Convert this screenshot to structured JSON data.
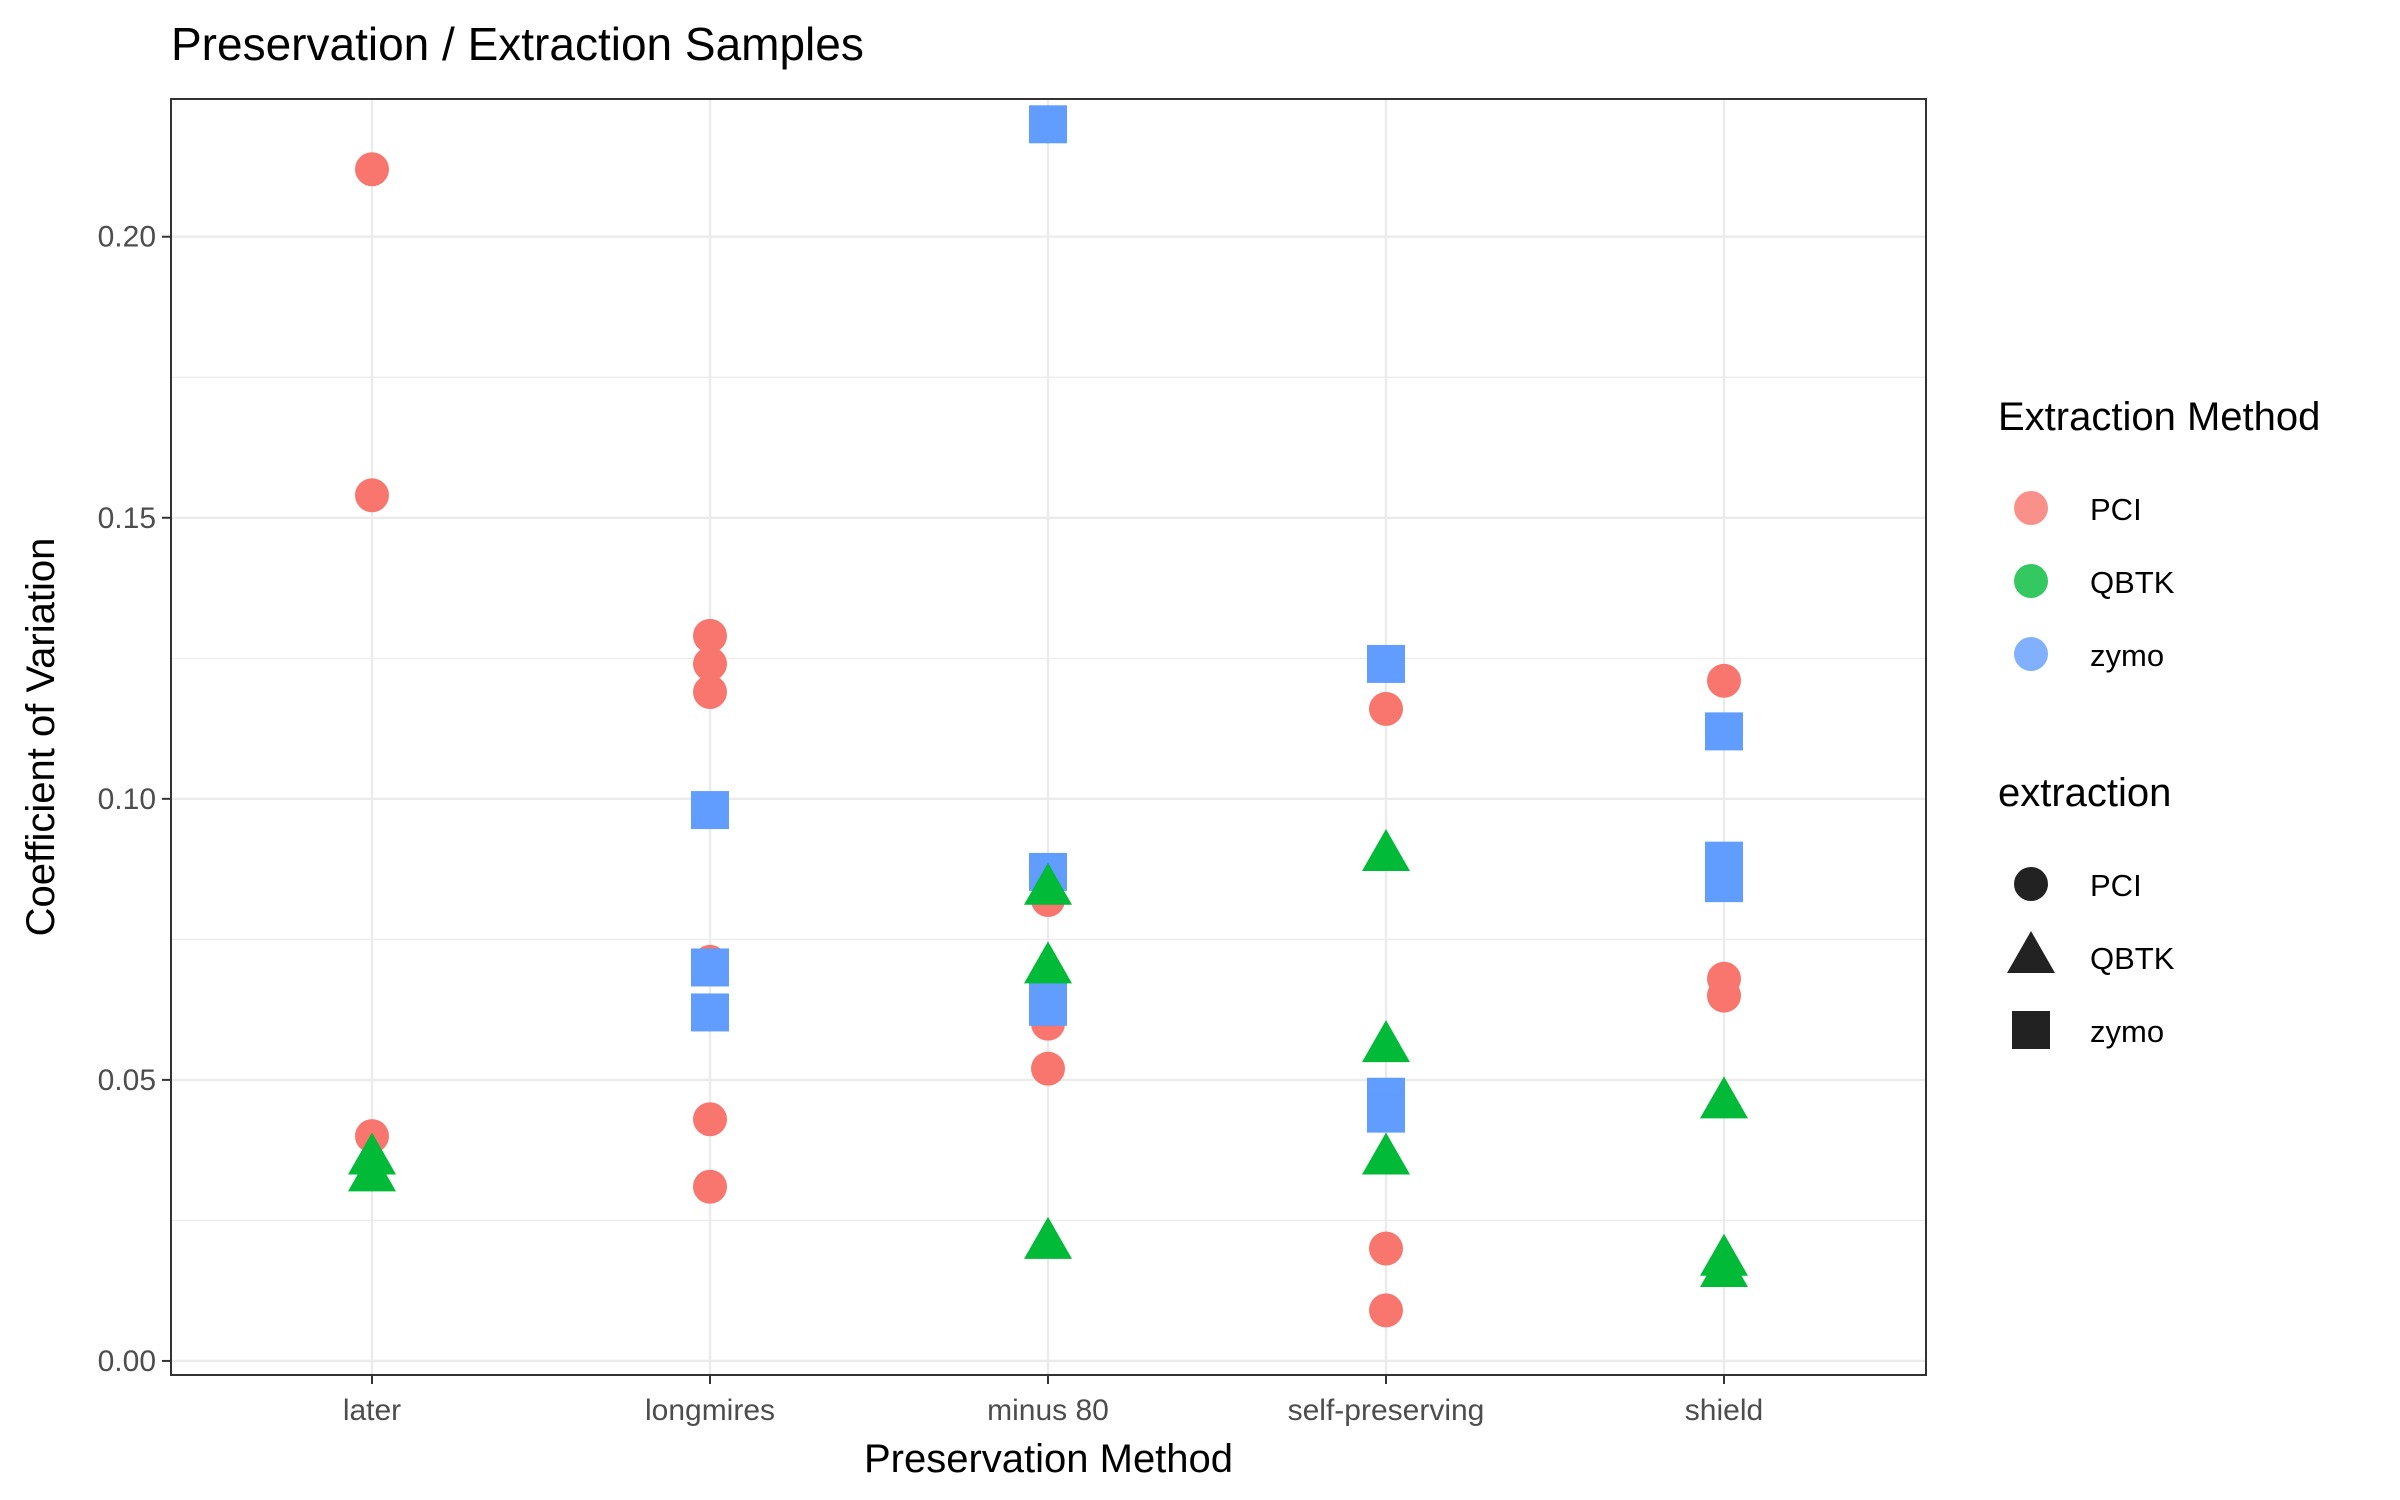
{
  "chart_data": {
    "type": "scatter",
    "title": "Preservation / Extraction Samples",
    "xlabel": "Preservation Method",
    "ylabel": "Coefficient of Variation",
    "categories": [
      "later",
      "longmires",
      "minus 80",
      "self-preserving",
      "shield"
    ],
    "ylim": [
      -0.0025,
      0.2245
    ],
    "yticks": [
      0.0,
      0.05,
      0.1,
      0.15,
      0.2
    ],
    "ytick_labels": [
      "0.00",
      "0.05",
      "0.10",
      "0.15",
      "0.20"
    ],
    "grid": true,
    "legend_position": "right",
    "colors": {
      "PCI": "#F8766D",
      "QBTK": "#00BA38",
      "zymo": "#619CFF"
    },
    "shapes": {
      "PCI": "circle",
      "QBTK": "triangle",
      "zymo": "square"
    },
    "legends": [
      {
        "title": "Extraction Method",
        "kind": "color",
        "entries": [
          "PCI",
          "QBTK",
          "zymo"
        ]
      },
      {
        "title": "extraction",
        "kind": "shape",
        "entries": [
          "PCI",
          "QBTK",
          "zymo"
        ]
      }
    ],
    "series": [
      {
        "name": "PCI",
        "points": [
          {
            "x": "later",
            "y": 0.212
          },
          {
            "x": "later",
            "y": 0.154
          },
          {
            "x": "later",
            "y": 0.04
          },
          {
            "x": "longmires",
            "y": 0.129
          },
          {
            "x": "longmires",
            "y": 0.124
          },
          {
            "x": "longmires",
            "y": 0.119
          },
          {
            "x": "longmires",
            "y": 0.071
          },
          {
            "x": "longmires",
            "y": 0.043
          },
          {
            "x": "longmires",
            "y": 0.031
          },
          {
            "x": "minus 80",
            "y": 0.082
          },
          {
            "x": "minus 80",
            "y": 0.06
          },
          {
            "x": "minus 80",
            "y": 0.052
          },
          {
            "x": "self-preserving",
            "y": 0.116
          },
          {
            "x": "self-preserving",
            "y": 0.02
          },
          {
            "x": "self-preserving",
            "y": 0.009
          },
          {
            "x": "shield",
            "y": 0.121
          },
          {
            "x": "shield",
            "y": 0.068
          },
          {
            "x": "shield",
            "y": 0.065
          }
        ]
      },
      {
        "name": "zymo",
        "points": [
          {
            "x": "longmires",
            "y": 0.098
          },
          {
            "x": "longmires",
            "y": 0.07
          },
          {
            "x": "longmires",
            "y": 0.062
          },
          {
            "x": "minus 80",
            "y": 0.22
          },
          {
            "x": "minus 80",
            "y": 0.087
          },
          {
            "x": "minus 80",
            "y": 0.065
          },
          {
            "x": "minus 80",
            "y": 0.063
          },
          {
            "x": "self-preserving",
            "y": 0.124
          },
          {
            "x": "self-preserving",
            "y": 0.047
          },
          {
            "x": "self-preserving",
            "y": 0.044
          },
          {
            "x": "shield",
            "y": 0.112
          },
          {
            "x": "shield",
            "y": 0.089
          },
          {
            "x": "shield",
            "y": 0.085
          }
        ]
      },
      {
        "name": "QBTK",
        "points": [
          {
            "x": "later",
            "y": 0.036
          },
          {
            "x": "later",
            "y": 0.033
          },
          {
            "x": "minus 80",
            "y": 0.084
          },
          {
            "x": "minus 80",
            "y": 0.07
          },
          {
            "x": "minus 80",
            "y": 0.021
          },
          {
            "x": "self-preserving",
            "y": 0.09
          },
          {
            "x": "self-preserving",
            "y": 0.056
          },
          {
            "x": "self-preserving",
            "y": 0.036
          },
          {
            "x": "shield",
            "y": 0.046
          },
          {
            "x": "shield",
            "y": 0.018
          },
          {
            "x": "shield",
            "y": 0.016
          }
        ]
      }
    ]
  }
}
